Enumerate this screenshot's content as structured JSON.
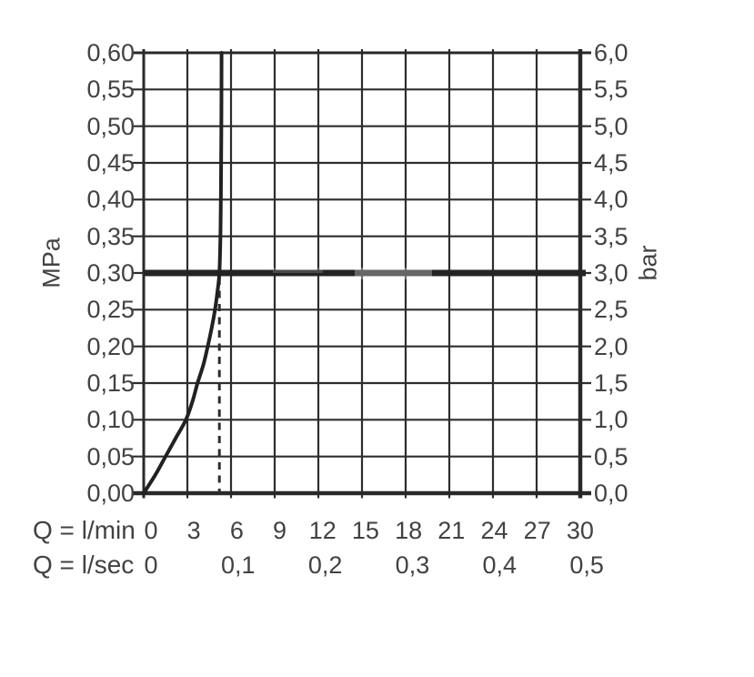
{
  "colors": {
    "background": "#ffffff",
    "grid_line": "#2d2d2d",
    "frame_line": "#282828",
    "curve_line": "#212121",
    "reference_line": "#242424",
    "dashed_line": "#2d2d2d",
    "label_text": "#424242"
  },
  "chart_data": {
    "type": "line",
    "title": "",
    "description": "Flow rate vs. pressure diagram (shower/faucet flow characteristic with flow limiter)",
    "grid": {
      "on": true,
      "x_step_lmin": 3,
      "y_step_mpa": 0.05
    },
    "axes": {
      "left": {
        "label": "MPa",
        "range": [
          0.0,
          0.6
        ],
        "tick_step": 0.05,
        "tick_labels_top_to_bottom": [
          "0,60",
          "0,55",
          "0,50",
          "0,45",
          "0,40",
          "0,35",
          "0,30",
          "0,25",
          "0,20",
          "0,15",
          "0,10",
          "0,05",
          "0,00"
        ]
      },
      "right": {
        "label": "bar",
        "range": [
          0.0,
          6.0
        ],
        "tick_step": 0.5,
        "tick_labels_top_to_bottom": [
          "6,0",
          "5,5",
          "5,0",
          "4,5",
          "4,0",
          "3,5",
          "3,0",
          "2,5",
          "2,0",
          "1,5",
          "1,0",
          "0,5",
          "0,0"
        ]
      },
      "bottom_lmin": {
        "label": "Q = l/min",
        "range": [
          0,
          30
        ],
        "tick_step": 3,
        "ticks": [
          {
            "q": 0,
            "text": "0"
          },
          {
            "q": 3,
            "text": "3"
          },
          {
            "q": 6,
            "text": "6"
          },
          {
            "q": 9,
            "text": "9"
          },
          {
            "q": 12,
            "text": "12"
          },
          {
            "q": 15,
            "text": "15"
          },
          {
            "q": 18,
            "text": "18"
          },
          {
            "q": 21,
            "text": "21"
          },
          {
            "q": 24,
            "text": "24"
          },
          {
            "q": 27,
            "text": "27"
          },
          {
            "q": 30,
            "text": "30"
          }
        ]
      },
      "bottom_lsec": {
        "label": "Q = l/sec",
        "ticks": [
          {
            "q": 0,
            "text": "0"
          },
          {
            "q": 6,
            "text": "0,1"
          },
          {
            "q": 12,
            "text": "0,2"
          },
          {
            "q": 18,
            "text": "0,3"
          },
          {
            "q": 24,
            "text": "0,4"
          },
          {
            "q": 30,
            "text": "0,5"
          }
        ]
      }
    },
    "series": [
      {
        "name": "flow-pressure-curve",
        "type": "line",
        "points_lmin_mpa": [
          [
            0,
            0
          ],
          [
            0.8,
            0.025
          ],
          [
            1.5,
            0.05
          ],
          [
            2.2,
            0.075
          ],
          [
            2.9,
            0.1
          ],
          [
            3.35,
            0.125
          ],
          [
            3.7,
            0.15
          ],
          [
            4.1,
            0.175
          ],
          [
            4.4,
            0.2
          ],
          [
            4.67,
            0.225
          ],
          [
            4.9,
            0.25
          ],
          [
            5.07,
            0.275
          ],
          [
            5.2,
            0.3
          ],
          [
            5.28,
            0.36
          ],
          [
            5.32,
            0.45
          ],
          [
            5.34,
            0.52
          ],
          [
            5.35,
            0.6
          ]
        ]
      }
    ],
    "reference_lines": [
      {
        "name": "operating-pressure-3bar-line",
        "axis": "y",
        "value_mpa": 0.3,
        "style": "thick-solid"
      },
      {
        "name": "flow-at-3bar-dashed-line",
        "axis": "x",
        "value_lmin": 5.2,
        "from_mpa": 0,
        "to_mpa": 0.3,
        "style": "dashed"
      }
    ]
  }
}
